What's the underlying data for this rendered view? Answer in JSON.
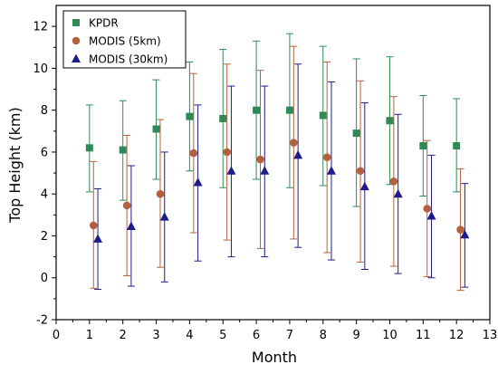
{
  "chart_data": {
    "type": "scatter",
    "title": "",
    "xlabel": "Month",
    "ylabel": "Top Height (km)",
    "xlim": [
      0,
      13
    ],
    "ylim": [
      -2,
      13
    ],
    "xticks": [
      "0",
      "1",
      "2",
      "3",
      "4",
      "5",
      "6",
      "7",
      "8",
      "9",
      "10",
      "11",
      "12",
      "13"
    ],
    "yticks": [
      "-2",
      "0",
      "2",
      "4",
      "6",
      "8",
      "10",
      "12"
    ],
    "grid": false,
    "legend_position": "top-left",
    "series": [
      {
        "name": "KPDR",
        "marker": "square",
        "color": "#2e8b57",
        "x": [
          1,
          2,
          3,
          4,
          5,
          6,
          7,
          8,
          9,
          10,
          11,
          12
        ],
        "y": [
          6.2,
          6.1,
          7.1,
          7.7,
          7.6,
          8.0,
          8.0,
          7.75,
          6.9,
          7.5,
          6.3,
          6.3
        ],
        "err_low": [
          4.1,
          3.7,
          4.7,
          5.1,
          4.3,
          4.7,
          4.3,
          4.4,
          3.4,
          4.45,
          3.9,
          4.1
        ],
        "err_high": [
          8.25,
          8.45,
          9.45,
          10.3,
          10.9,
          11.3,
          11.65,
          11.05,
          10.45,
          10.55,
          8.7,
          8.55
        ]
      },
      {
        "name": "MODIS (5km)",
        "marker": "circle",
        "color": "#b5603c",
        "x": [
          1.12,
          2.12,
          3.12,
          4.12,
          5.12,
          6.12,
          7.12,
          8.12,
          9.12,
          10.12,
          11.12,
          12.12
        ],
        "y": [
          2.5,
          3.45,
          4.0,
          5.95,
          6.0,
          5.65,
          6.45,
          5.75,
          5.1,
          4.6,
          3.3,
          2.3
        ],
        "err_low": [
          -0.5,
          0.1,
          0.5,
          2.15,
          1.8,
          1.4,
          1.85,
          1.2,
          0.75,
          0.55,
          0.05,
          -0.6
        ],
        "err_high": [
          5.55,
          6.8,
          7.55,
          9.75,
          10.2,
          9.9,
          11.05,
          10.3,
          9.4,
          8.65,
          6.55,
          5.2
        ]
      },
      {
        "name": "MODIS (30km)",
        "marker": "triangle",
        "color": "#1c1c8c",
        "x": [
          1.25,
          2.25,
          3.25,
          4.25,
          5.25,
          6.25,
          7.25,
          8.25,
          9.25,
          10.25,
          11.25,
          12.25
        ],
        "y": [
          1.85,
          2.45,
          2.9,
          4.55,
          5.1,
          5.1,
          5.85,
          5.1,
          4.35,
          4.0,
          2.95,
          2.05
        ],
        "err_low": [
          -0.55,
          -0.4,
          -0.2,
          0.8,
          1.0,
          1.0,
          1.45,
          0.85,
          0.4,
          0.2,
          0.0,
          -0.45
        ],
        "err_high": [
          4.25,
          5.35,
          6.0,
          8.25,
          9.15,
          9.15,
          10.2,
          9.35,
          8.35,
          7.8,
          5.85,
          4.5
        ]
      }
    ]
  }
}
